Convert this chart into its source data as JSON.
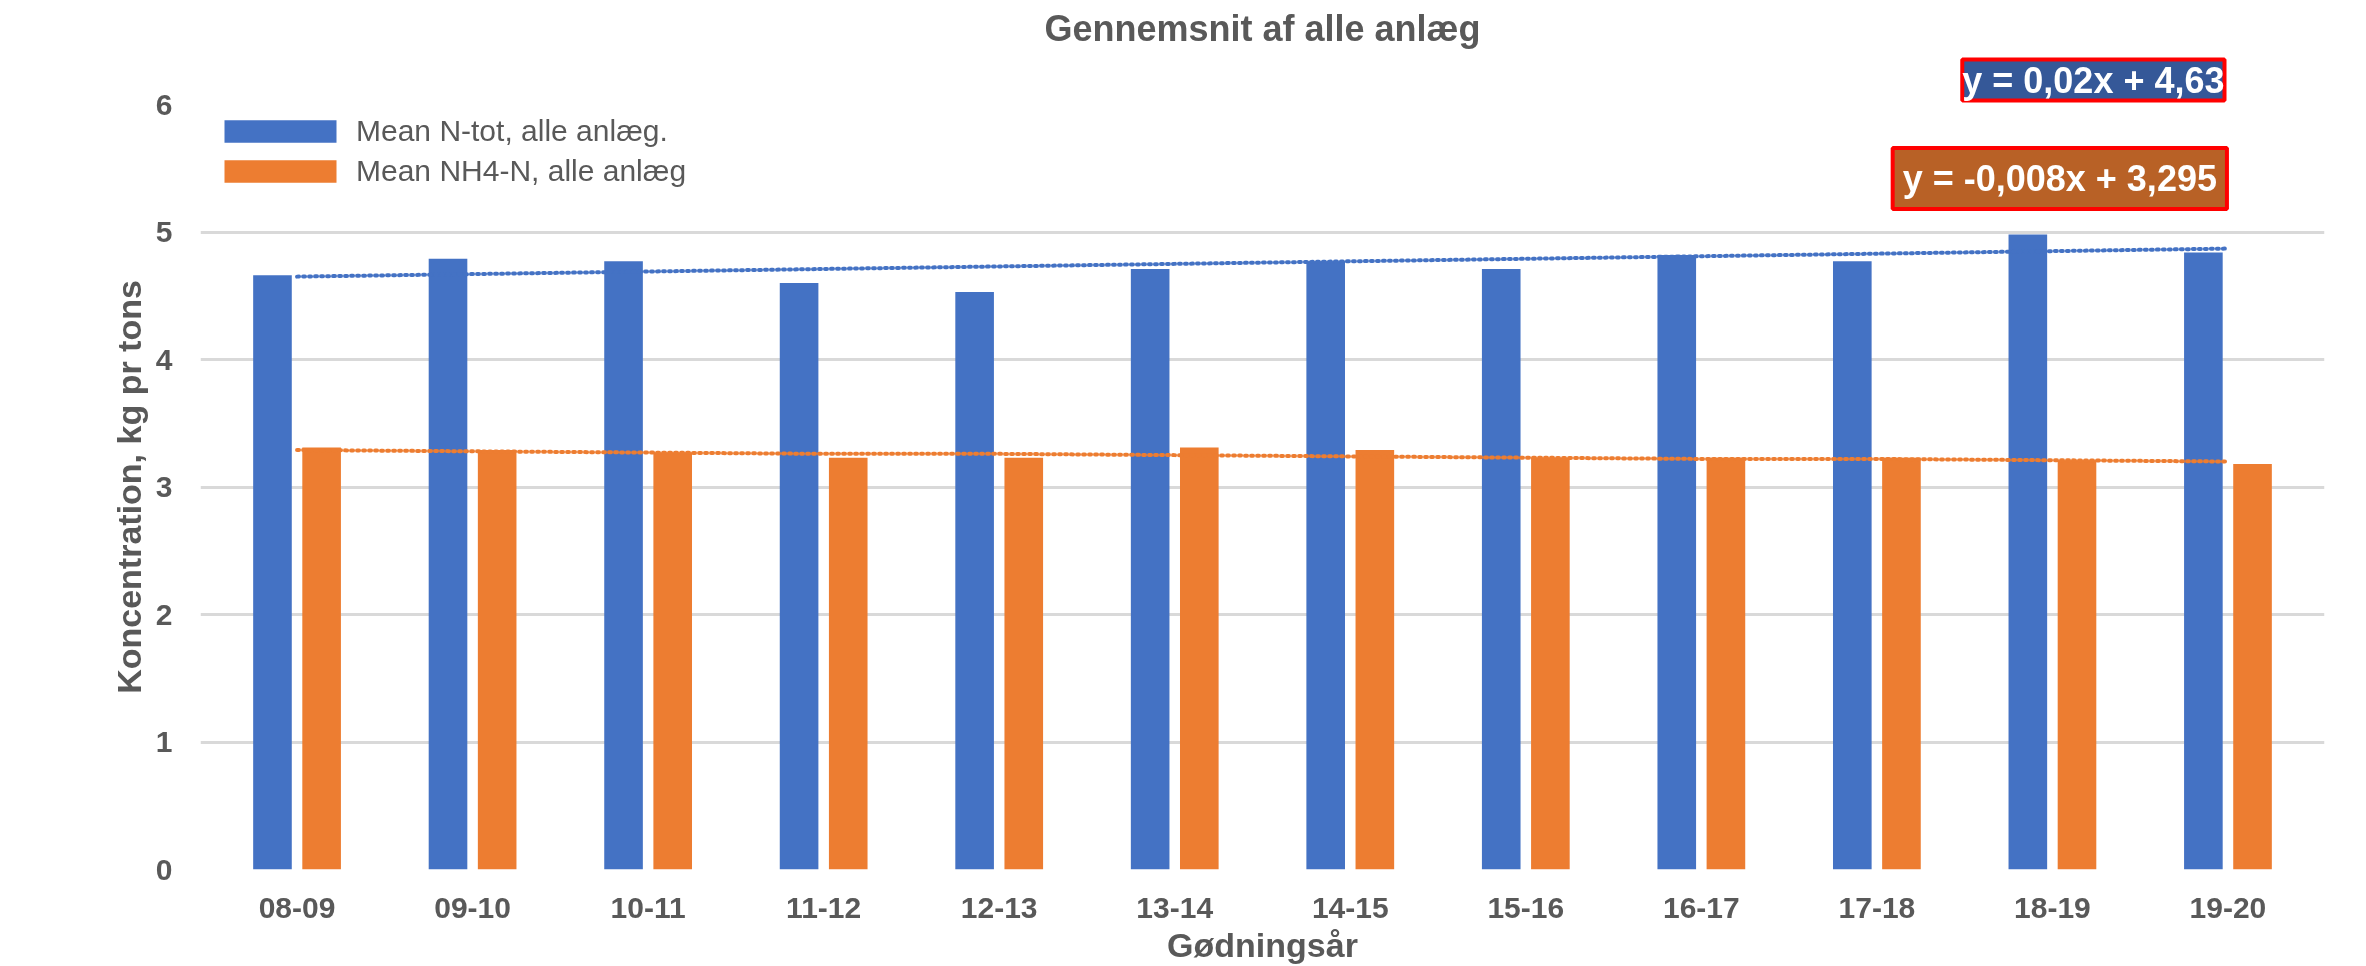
{
  "chart_data": {
    "type": "bar",
    "title": "Gennemsnit af alle anlæg",
    "xlabel": "Gødningsår",
    "ylabel": "Koncentration, kg pr tons",
    "categories": [
      "08-09",
      "09-10",
      "10-11",
      "11-12",
      "12-13",
      "13-14",
      "14-15",
      "15-16",
      "16-17",
      "17-18",
      "18-19",
      "19-20"
    ],
    "series": [
      {
        "name": "Mean N-tot, alle anlæg.",
        "color": "#4472c4",
        "values": [
          4.66,
          4.79,
          4.77,
          4.6,
          4.53,
          4.71,
          4.77,
          4.71,
          4.82,
          4.77,
          4.98,
          4.84
        ]
      },
      {
        "name": "Mean NH4-N, alle anlæg",
        "color": "#ed7d31",
        "values": [
          3.31,
          3.29,
          3.27,
          3.23,
          3.23,
          3.31,
          3.29,
          3.23,
          3.23,
          3.23,
          3.21,
          3.18
        ]
      },
      {
        "type": "line",
        "line_style": "dotted",
        "color": "#4472c4",
        "values": [
          4.65,
          4.67,
          4.69,
          4.71,
          4.73,
          4.75,
          4.77,
          4.79,
          4.81,
          4.83,
          4.85,
          4.87
        ]
      },
      {
        "type": "line",
        "line_style": "dotted",
        "color": "#ed7d31",
        "values": [
          3.29,
          3.28,
          3.27,
          3.26,
          3.26,
          3.25,
          3.24,
          3.23,
          3.22,
          3.22,
          3.21,
          3.2
        ]
      }
    ],
    "annotations": [
      "y = 0,02x + 4,63",
      "y = -0,008x + 3,295"
    ],
    "ylim": [
      0,
      6
    ],
    "yticks": [
      0,
      1,
      2,
      3,
      4,
      5,
      6
    ],
    "grid": "y",
    "legend": "top left"
  }
}
